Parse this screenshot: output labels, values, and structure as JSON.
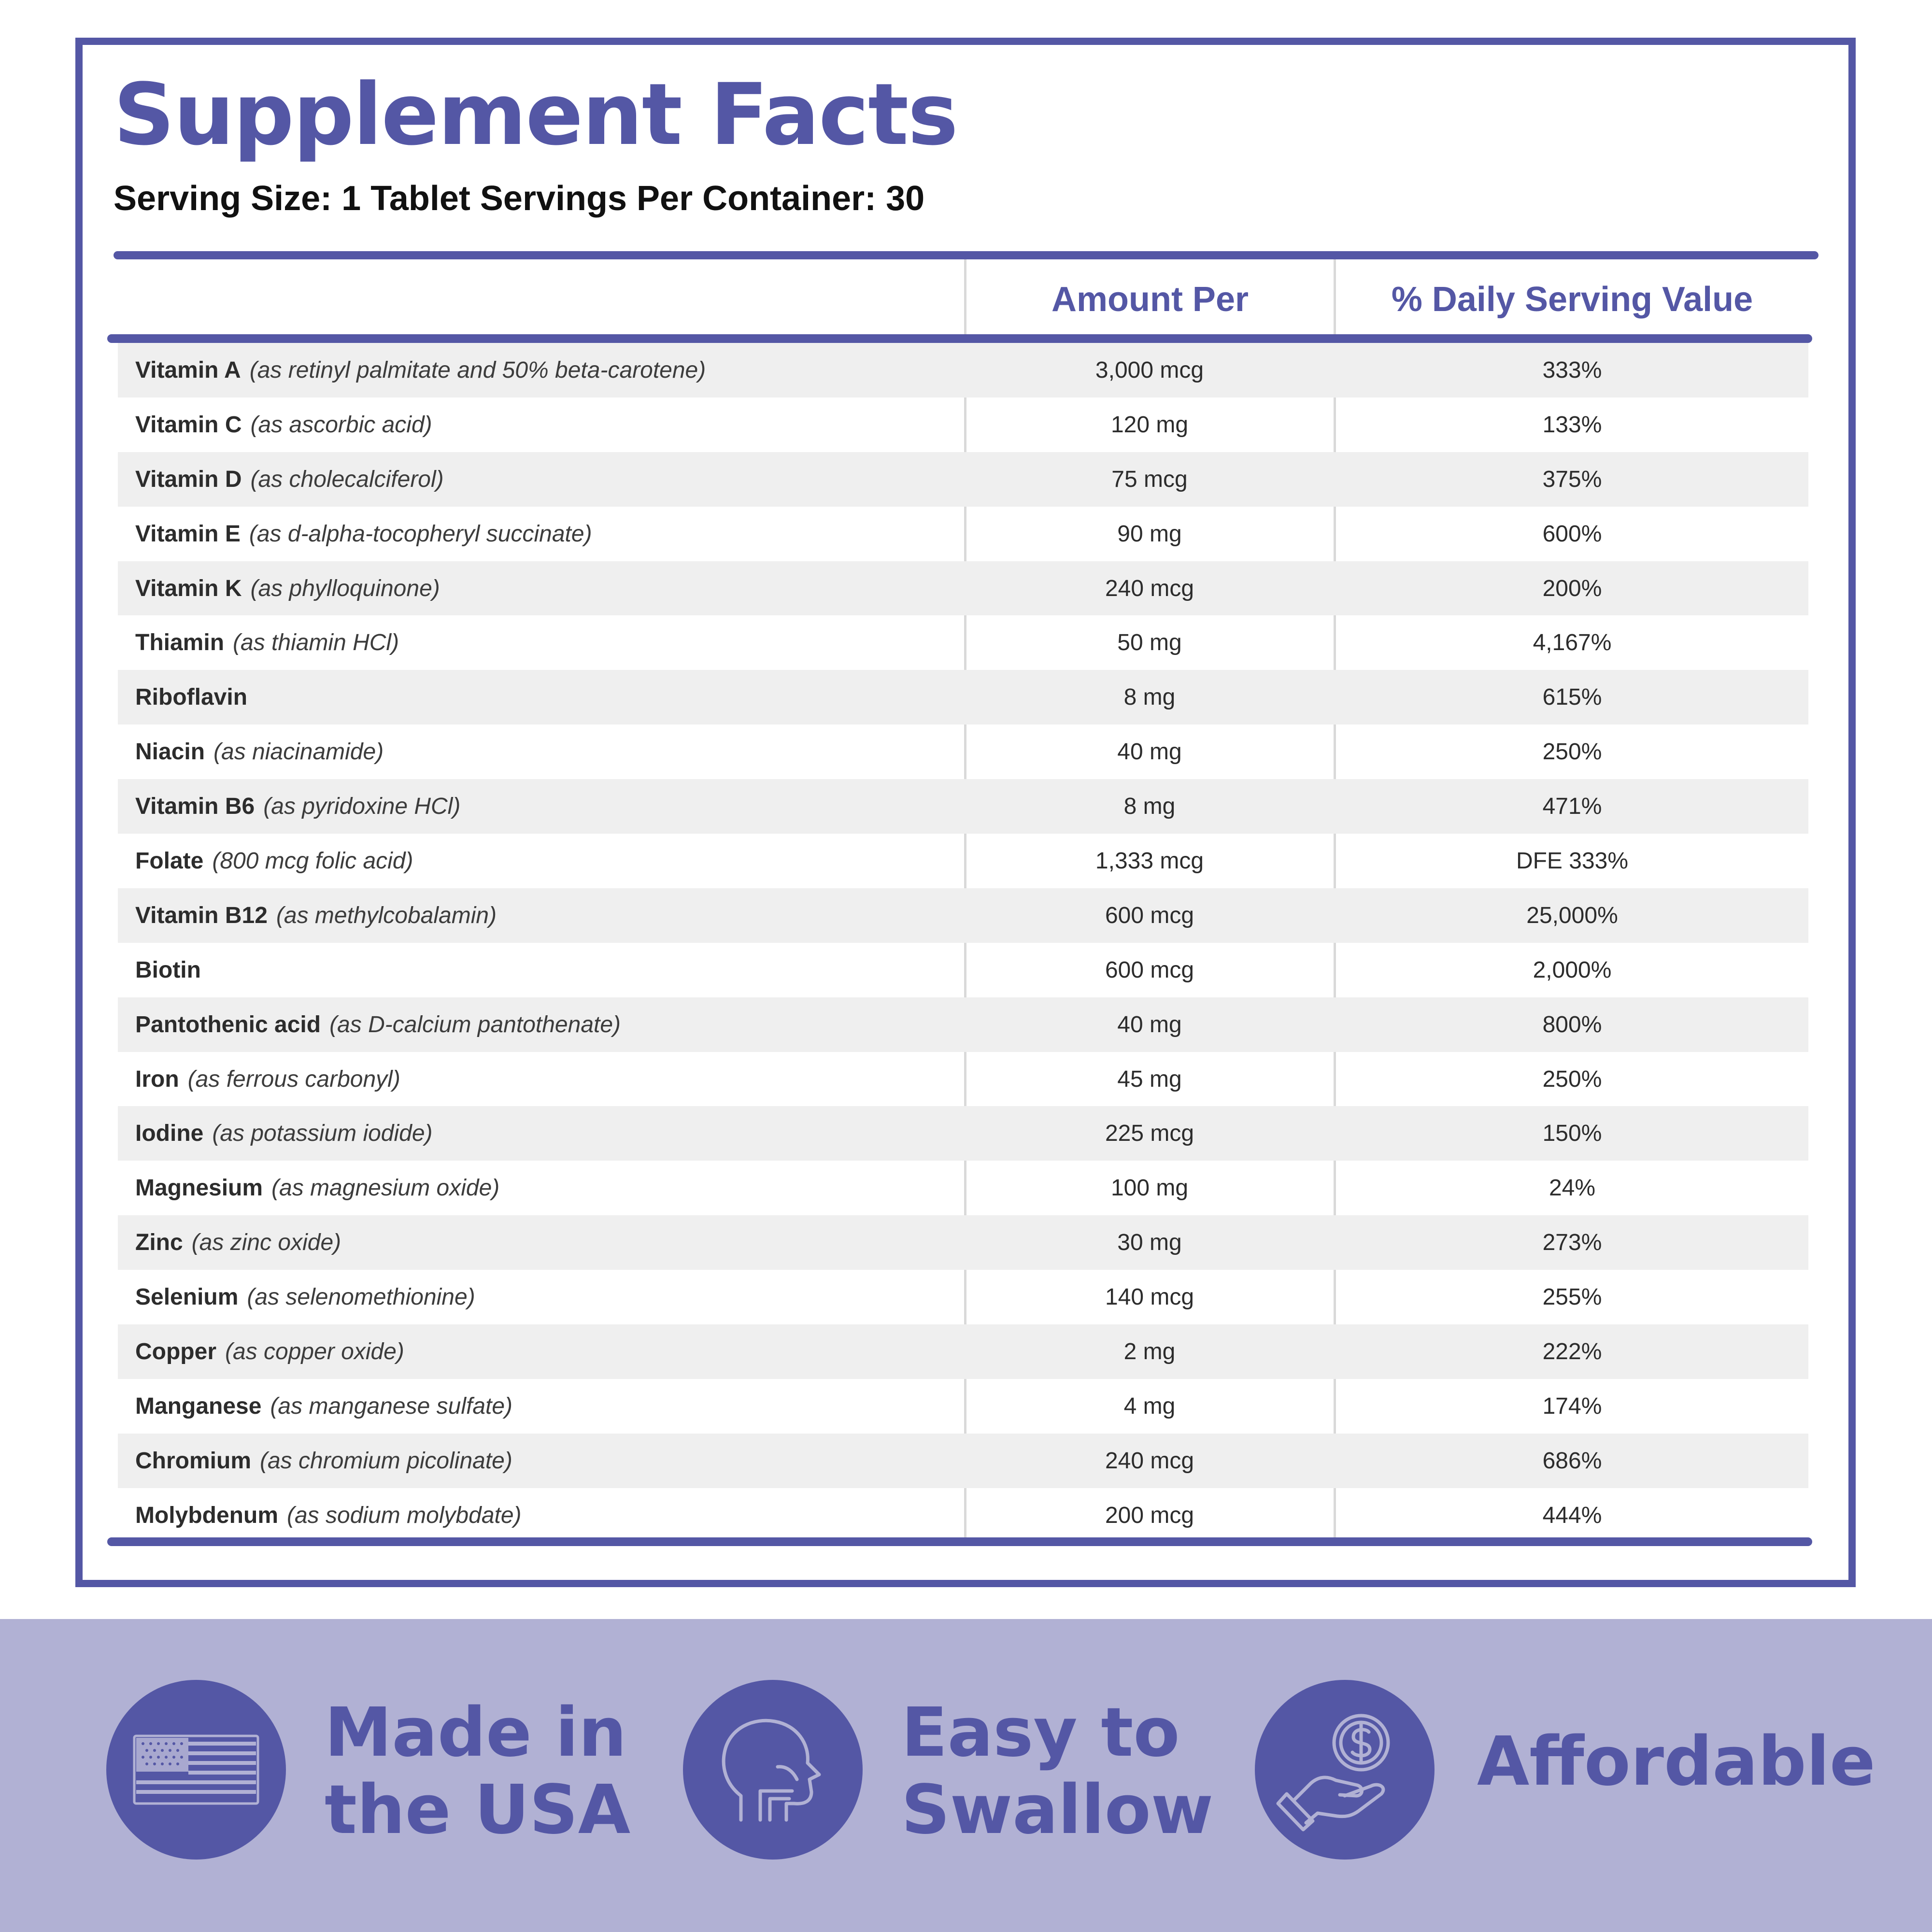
{
  "title": "Supplement Facts",
  "serving_line": "Serving Size: 1 Tablet Servings Per Container: 30",
  "columns": {
    "amount": "Amount Per",
    "daily": "% Daily Serving Value"
  },
  "rows": [
    {
      "name": "Vitamin A",
      "source": "(as retinyl palmitate and 50% beta-carotene)",
      "amount": "3,000 mcg",
      "dv": "333%"
    },
    {
      "name": "Vitamin C",
      "source": "(as ascorbic acid)",
      "amount": "120 mg",
      "dv": "133%"
    },
    {
      "name": "Vitamin D",
      "source": "(as cholecalciferol)",
      "amount": "75 mcg",
      "dv": "375%"
    },
    {
      "name": "Vitamin E",
      "source": "(as d-alpha-tocopheryl succinate)",
      "amount": "90 mg",
      "dv": "600%"
    },
    {
      "name": "Vitamin K",
      "source": "(as phylloquinone)",
      "amount": "240 mcg",
      "dv": "200%"
    },
    {
      "name": "Thiamin",
      "source": "(as thiamin HCl)",
      "amount": "50 mg",
      "dv": "4,167%"
    },
    {
      "name": "Riboflavin",
      "source": "",
      "amount": "8 mg",
      "dv": "615%"
    },
    {
      "name": "Niacin",
      "source": "(as niacinamide)",
      "amount": "40 mg",
      "dv": "250%"
    },
    {
      "name": "Vitamin B6",
      "source": "(as pyridoxine HCl)",
      "amount": "8 mg",
      "dv": "471%"
    },
    {
      "name": "Folate",
      "source": "(800 mcg folic acid)",
      "amount": "1,333 mcg",
      "dv": "DFE 333%"
    },
    {
      "name": "Vitamin B12",
      "source": "(as methylcobalamin)",
      "amount": "600 mcg",
      "dv": "25,000%"
    },
    {
      "name": "Biotin",
      "source": "",
      "amount": "600 mcg",
      "dv": "2,000%"
    },
    {
      "name": "Pantothenic acid",
      "source": "(as D-calcium pantothenate)",
      "amount": "40 mg",
      "dv": "800%"
    },
    {
      "name": "Iron",
      "source": "(as ferrous carbonyl)",
      "amount": "45 mg",
      "dv": "250%"
    },
    {
      "name": "Iodine",
      "source": "(as potassium iodide)",
      "amount": "225 mcg",
      "dv": "150%"
    },
    {
      "name": "Magnesium",
      "source": "(as magnesium oxide)",
      "amount": "100 mg",
      "dv": "24%"
    },
    {
      "name": "Zinc",
      "source": "(as zinc oxide)",
      "amount": "30 mg",
      "dv": "273%"
    },
    {
      "name": "Selenium",
      "source": "(as selenomethionine)",
      "amount": "140 mcg",
      "dv": "255%"
    },
    {
      "name": "Copper",
      "source": "(as copper oxide)",
      "amount": "2 mg",
      "dv": "222%"
    },
    {
      "name": "Manganese",
      "source": "(as manganese sulfate)",
      "amount": "4 mg",
      "dv": "174%"
    },
    {
      "name": "Chromium",
      "source": "(as chromium picolinate)",
      "amount": "240 mcg",
      "dv": "686%"
    },
    {
      "name": "Molybdenum",
      "source": "(as sodium molybdate)",
      "amount": "200 mcg",
      "dv": "444%"
    }
  ],
  "features": [
    {
      "icon": "usa-flag-icon",
      "line1": "Made in",
      "line2": "the USA"
    },
    {
      "icon": "head-swallow-icon",
      "line1": "Easy to",
      "line2": "Swallow"
    },
    {
      "icon": "hand-dollar-icon",
      "line1": "Affordable",
      "line2": ""
    }
  ],
  "colors": {
    "accent": "#5457a5",
    "footer": "#b1b1d4",
    "row_shade": "#efefef",
    "divider": "#d9d9d9"
  }
}
